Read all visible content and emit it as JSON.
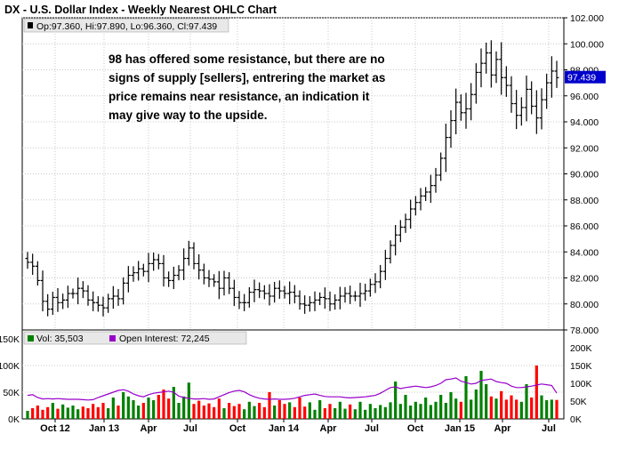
{
  "title": "DX - U.S. Dollar Index - Weekly Nearest OHLC Chart",
  "ohlc_info": "Op:97.360, Hi:97.890, Lo:96.360, Cl:97.439",
  "last_price_label": "97.439",
  "annotation": "98 has offered some resistance, but there are no signs of supply [sellers], entrering the market as price remains near resistance, an indication it may give way to the upside.",
  "volume_legend": "Vol: 35,503",
  "oi_legend": "Open Interest: 72,245",
  "colors": {
    "price": "#000000",
    "volume_up": "#008000",
    "volume_down": "#ff0000",
    "open_interest": "#9900cc",
    "last_price_bg": "#0000cc"
  },
  "chart_data": [
    {
      "type": "line",
      "subtype": "ohlc",
      "title": "DX - U.S. Dollar Index - Weekly Nearest OHLC Chart",
      "ylim": [
        78,
        102
      ],
      "y_ticks": [
        "102.000",
        "100.000",
        "98.000",
        "96.000",
        "94.000",
        "92.000",
        "90.000",
        "88.000",
        "86.000",
        "84.000",
        "82.000",
        "80.000",
        "78.000"
      ],
      "x_ticks": [
        "Oct 12",
        "Jan 13",
        "Apr",
        "Jul",
        "Oct",
        "Jan 14",
        "Apr",
        "Jul",
        "Oct",
        "Jan 15",
        "Apr",
        "Jul"
      ],
      "last": {
        "open": 97.36,
        "high": 97.89,
        "low": 96.36,
        "close": 97.439
      },
      "series": [
        {
          "name": "DX",
          "values": [
            83.2,
            82.9,
            81.8,
            80.2,
            79.6,
            80.5,
            80.1,
            80.3,
            80.8,
            80.8,
            81.2,
            81.0,
            80.3,
            80.1,
            79.9,
            79.7,
            80.4,
            80.6,
            80.4,
            81.6,
            82.2,
            82.4,
            82.7,
            82.5,
            83.1,
            83.4,
            83.1,
            82.0,
            81.8,
            82.2,
            82.6,
            83.5,
            84.3,
            83.1,
            82.6,
            82.0,
            81.9,
            81.7,
            81.2,
            82.0,
            81.2,
            80.5,
            80.1,
            80.1,
            80.9,
            81.1,
            81.0,
            80.8,
            80.6,
            81.2,
            81.0,
            80.8,
            80.9,
            80.6,
            80.0,
            79.9,
            80.1,
            80.3,
            80.5,
            80.4,
            80.0,
            80.3,
            80.6,
            80.8,
            80.6,
            80.6,
            80.8,
            81.0,
            81.5,
            81.7,
            82.5,
            83.5,
            84.5,
            85.3,
            85.9,
            86.5,
            87.3,
            87.8,
            88.3,
            88.6,
            89.1,
            89.9,
            91.2,
            92.8,
            94.1,
            95.5,
            94.7,
            95.0,
            96.1,
            97.8,
            98.5,
            99.3,
            97.6,
            98.8,
            97.4,
            96.8,
            95.4,
            94.5,
            95.1,
            96.5,
            95.2,
            94.3,
            95.7,
            97.0,
            97.9,
            97.4
          ]
        }
      ]
    },
    {
      "type": "bar",
      "title": "Volume / Open Interest",
      "ylim": [
        0,
        150000
      ],
      "y_ticks_left": [
        "150K",
        "100K",
        "50K",
        "0K"
      ],
      "y_ticks_right": [
        "200K",
        "150K",
        "100K",
        "50K",
        "0K"
      ],
      "series": [
        {
          "name": "Vol",
          "last": 35503,
          "values": [
            15000,
            20000,
            25000,
            17000,
            22000,
            30000,
            19000,
            27000,
            21000,
            25000,
            18000,
            23000,
            20000,
            28000,
            22000,
            30000,
            20000,
            40000,
            25000,
            50000,
            42000,
            35000,
            25000,
            30000,
            40000,
            35000,
            45000,
            55000,
            38000,
            60000,
            30000,
            42000,
            68000,
            28000,
            34000,
            25000,
            29000,
            22000,
            38000,
            20000,
            30000,
            24000,
            28000,
            18000,
            32000,
            24000,
            30000,
            22000,
            50000,
            25000,
            35000,
            28000,
            31000,
            22000,
            40000,
            23000,
            31000,
            17000,
            35000,
            20000,
            28000,
            20000,
            32000,
            19000,
            27000,
            18000,
            32000,
            17000,
            28000,
            20000,
            26000,
            22000,
            31000,
            70000,
            28000,
            45000,
            25000,
            32000,
            28000,
            40000,
            26000,
            32000,
            45000,
            30000,
            50000,
            38000,
            32000,
            80000,
            36000,
            55000,
            90000,
            65000,
            42000,
            38000,
            52000,
            36000,
            44000,
            36000,
            32000,
            65000,
            40000,
            100000,
            44000,
            35000,
            36000,
            35503
          ]
        },
        {
          "name": "Open Interest",
          "last": 72245,
          "values": [
            66000,
            68000,
            60000,
            56000,
            57000,
            56000,
            57000,
            56000,
            55000,
            55000,
            55000,
            54000,
            53000,
            54000,
            60000,
            65000,
            70000,
            75000,
            80000,
            82000,
            78000,
            70000,
            65000,
            62000,
            68000,
            72000,
            74000,
            76000,
            78000,
            75000,
            64000,
            60000,
            58000,
            56000,
            56000,
            57000,
            55000,
            56000,
            62000,
            68000,
            74000,
            78000,
            80000,
            76000,
            68000,
            62000,
            58000,
            56000,
            55000,
            56000,
            55000,
            55000,
            56000,
            58000,
            62000,
            66000,
            68000,
            70000,
            66000,
            63000,
            62000,
            62000,
            62000,
            60000,
            59000,
            60000,
            61000,
            62000,
            64000,
            66000,
            72000,
            80000,
            88000,
            90000,
            85000,
            88000,
            90000,
            92000,
            90000,
            88000,
            90000,
            94000,
            100000,
            110000,
            112000,
            115000,
            106000,
            102000,
            98000,
            100000,
            108000,
            110000,
            112000,
            105000,
            102000,
            100000,
            92000,
            88000,
            88000,
            90000,
            92000,
            95000,
            98000,
            96000,
            94000,
            72245
          ]
        }
      ]
    }
  ]
}
